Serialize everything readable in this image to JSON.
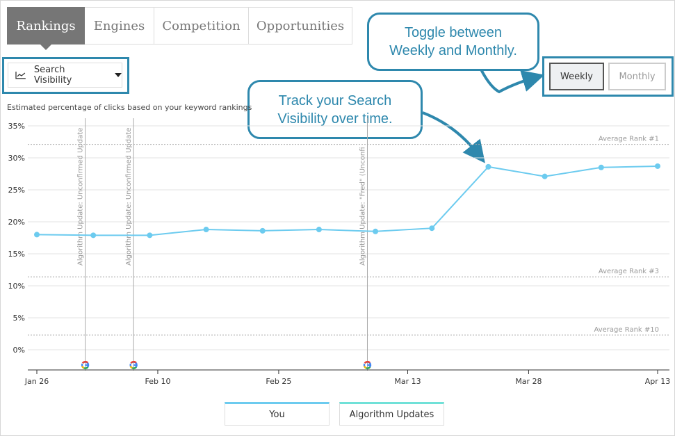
{
  "tabs": [
    {
      "label": "Rankings",
      "active": true
    },
    {
      "label": "Engines",
      "active": false
    },
    {
      "label": "Competition",
      "active": false
    },
    {
      "label": "Opportunities",
      "active": false
    }
  ],
  "metric_selector": {
    "label": "Search Visibility",
    "icon": "line-chart-icon"
  },
  "interval_toggle": {
    "weekly_label": "Weekly",
    "monthly_label": "Monthly",
    "selected": "Weekly"
  },
  "callouts": {
    "toggle": "Toggle between\nWeekly and Monthly.",
    "track": "Track your Search\nVisibility over time."
  },
  "caption": "Estimated percentage of clicks based on your keyword rankings",
  "colors": {
    "accent": "#2e88ad",
    "series": "#6ccbef",
    "algorithm": "#70e1d8",
    "active_tab": "#767676"
  },
  "legend": [
    {
      "label": "You",
      "color": "#6ccbef"
    },
    {
      "label": "Algorithm Updates",
      "color": "#70e1d8"
    }
  ],
  "chart_data": {
    "type": "line",
    "ylim": [
      0,
      35
    ],
    "y_ticks": [
      {
        "value": 0,
        "label": "0%"
      },
      {
        "value": 5,
        "label": "5%"
      },
      {
        "value": 10,
        "label": "10%"
      },
      {
        "value": 15,
        "label": "15%"
      },
      {
        "value": 20,
        "label": "20%"
      },
      {
        "value": 25,
        "label": "25%"
      },
      {
        "value": 30,
        "label": "30%"
      },
      {
        "value": 35,
        "label": "35%"
      }
    ],
    "x_ticks": [
      {
        "date": "2017-01-26",
        "label": "Jan 26"
      },
      {
        "date": "2017-02-10",
        "label": "Feb 10"
      },
      {
        "date": "2017-02-25",
        "label": "Feb 25"
      },
      {
        "date": "2017-03-13",
        "label": "Mar 13"
      },
      {
        "date": "2017-03-28",
        "label": "Mar 28"
      },
      {
        "date": "2017-04-13",
        "label": "Apr 13"
      }
    ],
    "series": [
      {
        "name": "You",
        "points": [
          {
            "date": "2017-01-26",
            "value": 18.0
          },
          {
            "date": "2017-02-02",
            "value": 17.9
          },
          {
            "date": "2017-02-09",
            "value": 17.9
          },
          {
            "date": "2017-02-16",
            "value": 18.8
          },
          {
            "date": "2017-02-23",
            "value": 18.6
          },
          {
            "date": "2017-03-02",
            "value": 18.8
          },
          {
            "date": "2017-03-09",
            "value": 18.5
          },
          {
            "date": "2017-03-16",
            "value": 19.0
          },
          {
            "date": "2017-03-23",
            "value": 28.6
          },
          {
            "date": "2017-03-30",
            "value": 27.1
          },
          {
            "date": "2017-04-06",
            "value": 28.5
          },
          {
            "date": "2017-04-13",
            "value": 28.7
          }
        ]
      }
    ],
    "reference_lines": [
      {
        "label": "Average Rank #1",
        "value": 32.1
      },
      {
        "label": "Average Rank #3",
        "value": 11.4
      },
      {
        "label": "Average Rank #10",
        "value": 2.3
      }
    ],
    "algorithm_updates": [
      {
        "date": "2017-02-01",
        "label": "Algorithm Update: Unconfirmed Update",
        "icon": "google-icon"
      },
      {
        "date": "2017-02-07",
        "label": "Algorithm Update: Unconfirmed Update",
        "icon": "google-icon"
      },
      {
        "date": "2017-03-08",
        "label": "Algorithm Update: \"Fred\" (Unconfi",
        "icon": "google-icon"
      }
    ]
  }
}
